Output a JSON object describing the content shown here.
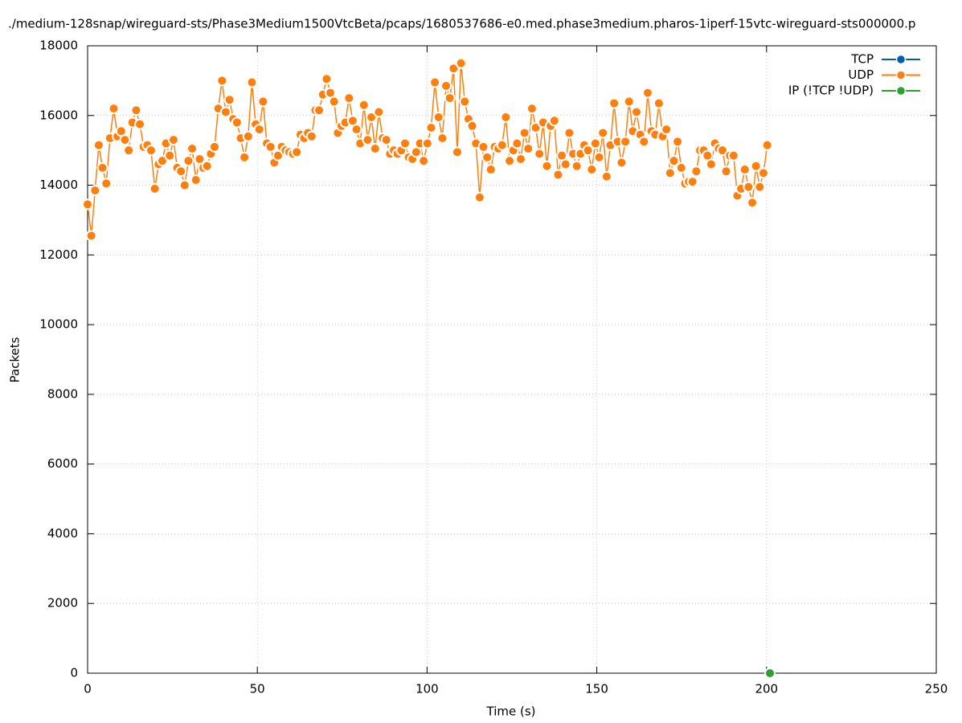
{
  "chart_data": {
    "type": "line",
    "title": "./medium-128snap/wireguard-sts/Phase3Medium1500VtcBeta/pcaps/1680537686-e0.med.phase3medium.pharos-1iperf-15vtc-wireguard-sts000000.p",
    "x_label": "Time (s)",
    "y_label": "Packets",
    "xlim": [
      0,
      250
    ],
    "xticks": [
      0,
      50,
      100,
      150,
      200,
      250
    ],
    "ylim": [
      0,
      18000
    ],
    "yticks": [
      0,
      2000,
      4000,
      6000,
      8000,
      10000,
      12000,
      14000,
      16000,
      18000
    ],
    "grid": true,
    "legend": "top-right",
    "series": [
      {
        "name": "TCP",
        "color": "#0060ad",
        "x": [],
        "values": []
      },
      {
        "name": "UDP",
        "color": "#ff7f0e",
        "x": [
          0,
          1.1,
          2.2,
          3.3,
          4.4,
          5.5,
          6.6,
          7.7,
          8.8,
          9.9,
          11,
          12.1,
          13.2,
          14.3,
          15.4,
          16.5,
          17.6,
          18.7,
          19.8,
          20.9,
          22,
          23.1,
          24.2,
          25.3,
          26.4,
          27.5,
          28.6,
          29.7,
          30.8,
          31.9,
          33,
          34.1,
          35.2,
          36.3,
          37.4,
          38.5,
          39.6,
          40.7,
          41.8,
          42.9,
          44,
          45.1,
          46.2,
          47.3,
          48.4,
          49.5,
          50.6,
          51.7,
          52.8,
          53.9,
          55,
          56.1,
          57.2,
          58.3,
          59.4,
          60.5,
          61.6,
          62.7,
          63.8,
          64.9,
          66,
          67.1,
          68.2,
          69.3,
          70.4,
          71.5,
          72.6,
          73.7,
          74.8,
          75.9,
          77,
          78.1,
          79.2,
          80.3,
          81.4,
          82.5,
          83.6,
          84.7,
          85.8,
          86.9,
          88,
          89.1,
          90.2,
          91.3,
          92.4,
          93.5,
          94.6,
          95.7,
          96.8,
          97.9,
          99,
          100.1,
          101.2,
          102.3,
          103.4,
          104.5,
          105.6,
          106.7,
          107.8,
          108.9,
          110,
          111.1,
          112.2,
          113.3,
          114.4,
          115.5,
          116.6,
          117.7,
          118.8,
          119.9,
          121,
          122.1,
          123.2,
          124.3,
          125.4,
          126.5,
          127.6,
          128.7,
          129.8,
          130.9,
          132,
          133.1,
          134.2,
          135.3,
          136.4,
          137.5,
          138.6,
          139.7,
          140.8,
          141.9,
          143,
          144.1,
          145.2,
          146.3,
          147.4,
          148.5,
          149.6,
          150.7,
          151.8,
          152.9,
          154,
          155.1,
          156.2,
          157.3,
          158.4,
          159.5,
          160.6,
          161.7,
          162.8,
          163.9,
          165,
          166.1,
          167.2,
          168.3,
          169.4,
          170.5,
          171.6,
          172.7,
          173.8,
          174.9,
          176,
          177.1,
          178.2,
          179.3,
          180.4,
          181.5,
          182.6,
          183.7,
          184.8,
          185.9,
          187,
          188.1,
          189.2,
          190.3,
          191.4,
          192.5,
          193.6,
          194.7,
          195.8,
          196.9,
          198,
          199.1,
          200.2
        ],
        "values": [
          13450,
          12550,
          13850,
          15150,
          14500,
          14050,
          15350,
          16200,
          15400,
          15550,
          15300,
          15000,
          15800,
          16150,
          15750,
          15100,
          15150,
          15000,
          13900,
          14600,
          14700,
          15200,
          14850,
          15300,
          14500,
          14400,
          14000,
          14700,
          15050,
          14150,
          14750,
          14500,
          14550,
          14900,
          15100,
          16200,
          17000,
          16100,
          16450,
          15900,
          15800,
          15350,
          14800,
          15400,
          16950,
          15750,
          15600,
          16400,
          15200,
          15100,
          14650,
          14850,
          15100,
          15000,
          14950,
          14900,
          14950,
          15450,
          15350,
          15500,
          15400,
          16150,
          16150,
          16600,
          17050,
          16650,
          16400,
          15500,
          15700,
          15800,
          16500,
          15850,
          15600,
          15200,
          16300,
          15300,
          15950,
          15050,
          16100,
          15350,
          15300,
          14900,
          15000,
          14900,
          15000,
          15200,
          14800,
          14750,
          14950,
          15200,
          14700,
          15200,
          15650,
          16950,
          15950,
          15350,
          16850,
          16500,
          17350,
          14950,
          17500,
          16400,
          15900,
          15700,
          15200,
          13650,
          15100,
          14800,
          14450,
          15100,
          15050,
          15150,
          15950,
          14700,
          15000,
          15200,
          14750,
          15500,
          15050,
          16200,
          15650,
          14900,
          15800,
          14550,
          15700,
          15850,
          14300,
          14850,
          14600,
          15500,
          14900,
          14550,
          14900,
          15150,
          15000,
          14450,
          15200,
          14800,
          15500,
          14250,
          15150,
          16350,
          15250,
          14650,
          15250,
          16400,
          15550,
          16100,
          15450,
          15250,
          16650,
          15550,
          15450,
          16350,
          15400,
          15600,
          14350,
          14700,
          15250,
          14500,
          14050,
          14100,
          14100,
          14400,
          15000,
          15000,
          14850,
          14600,
          15200,
          15050,
          15000,
          14400,
          14850,
          14850,
          13700,
          13900,
          14450,
          13950,
          13500,
          14550,
          13950,
          14350,
          15150
        ]
      },
      {
        "name": "IP (!TCP  !UDP)",
        "color": "#2ca02c",
        "x": [
          201
        ],
        "values": [
          0
        ]
      }
    ]
  }
}
